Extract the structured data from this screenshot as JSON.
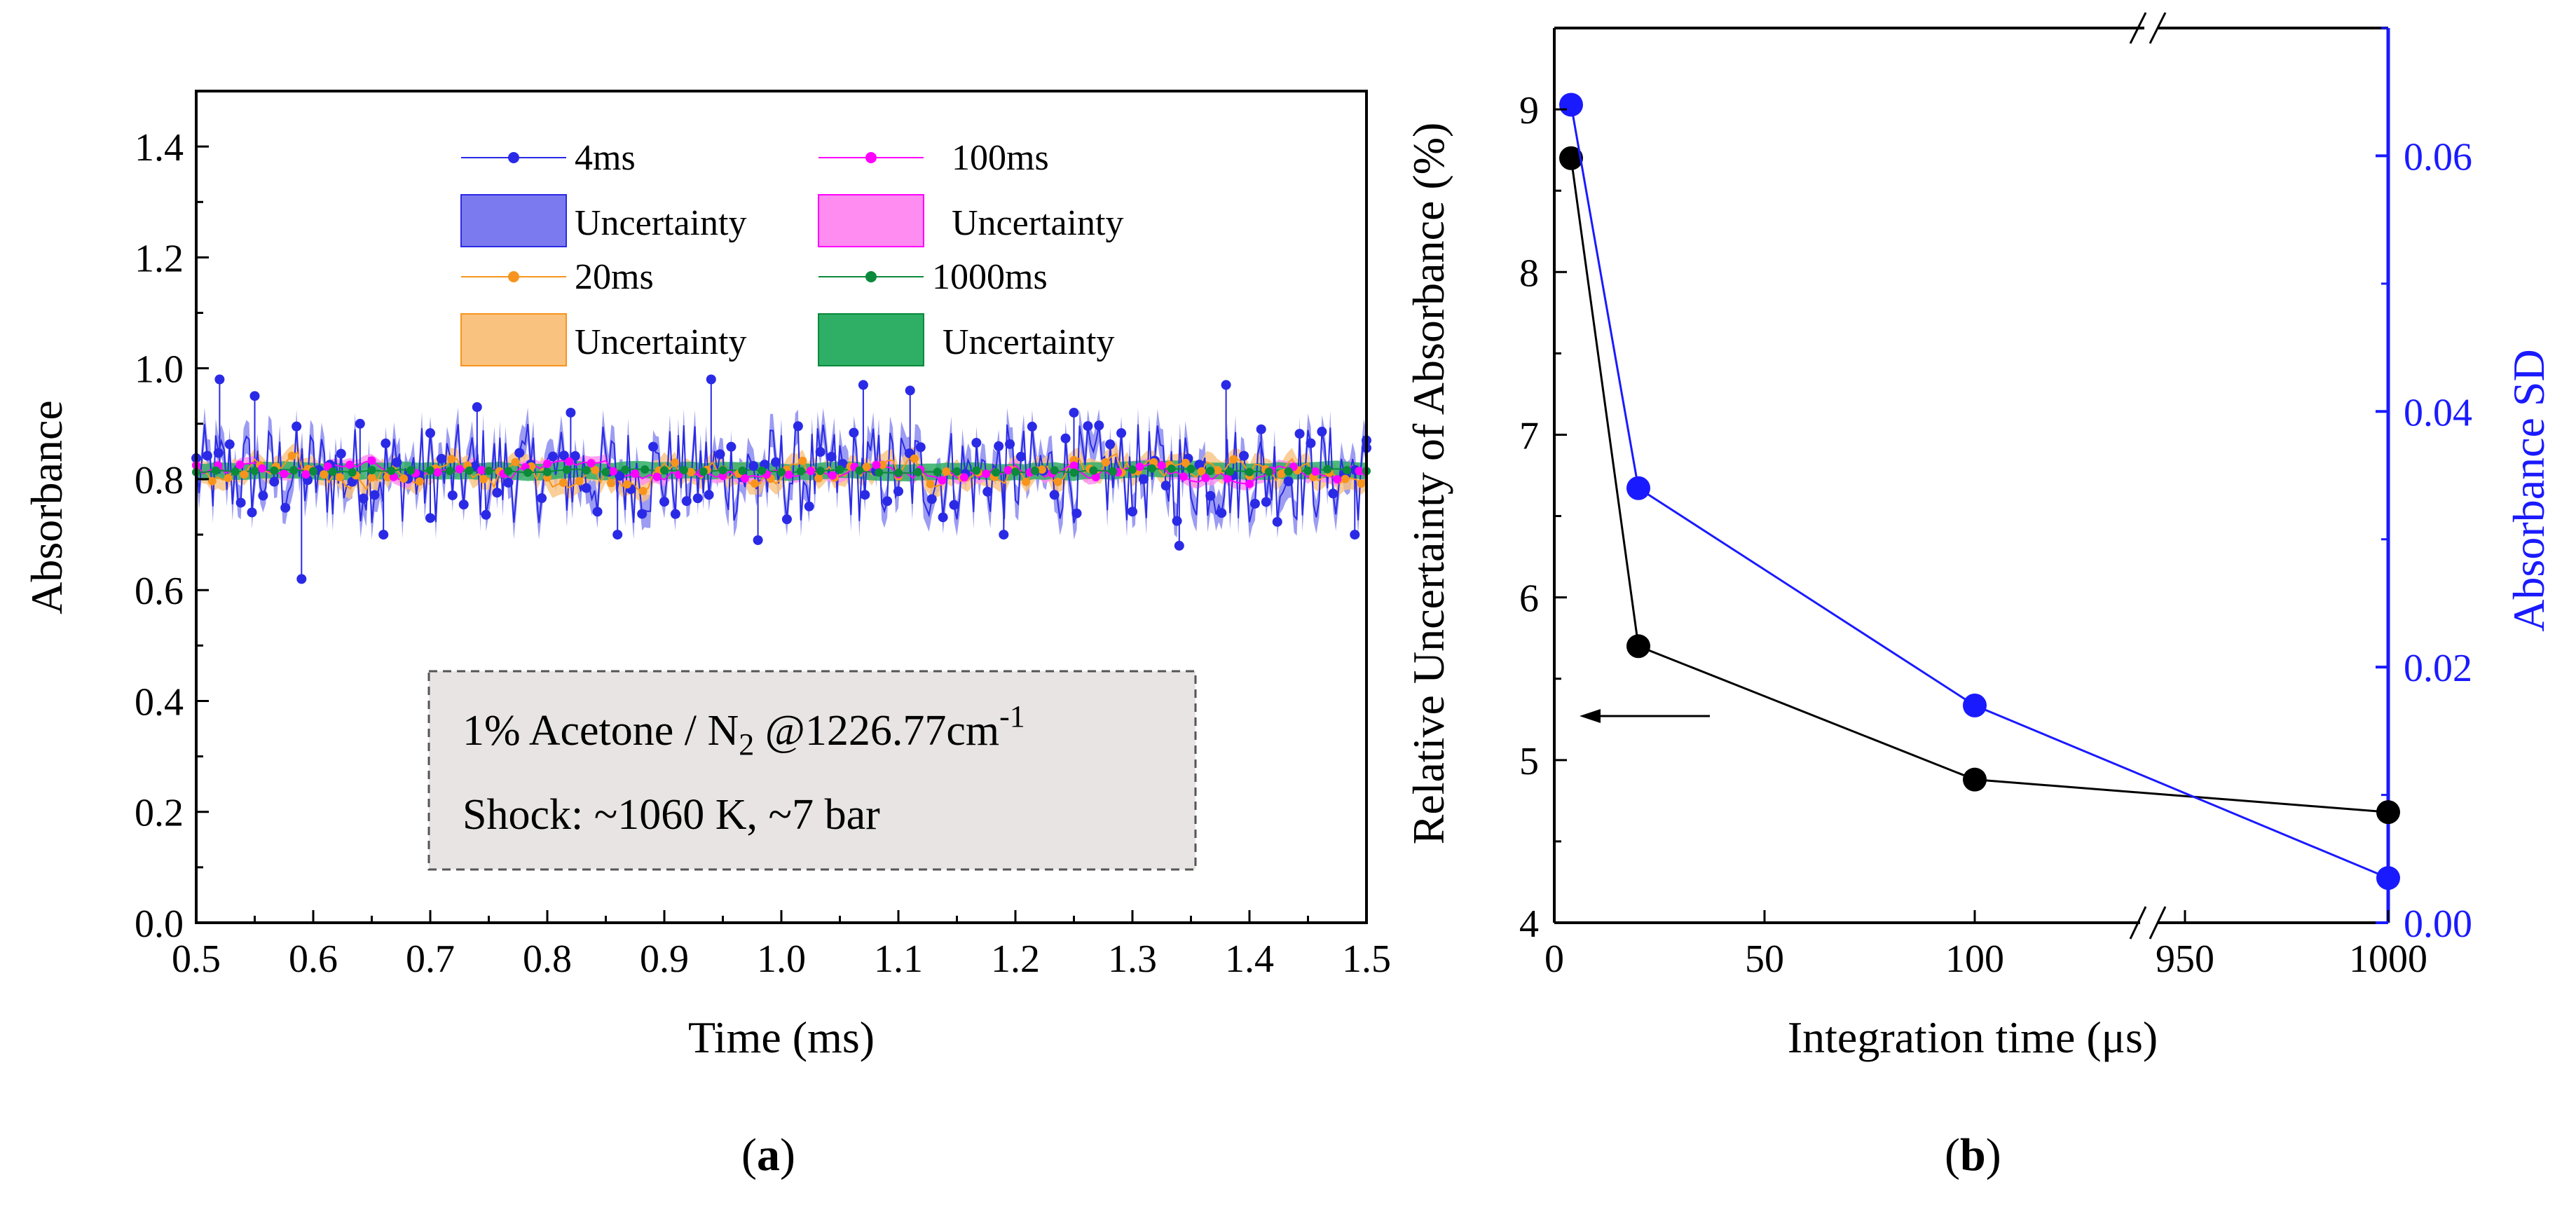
{
  "figure": {
    "panel_a_label": "a",
    "panel_b_label": "b"
  },
  "colors": {
    "series_4ms": "#2a2ae6",
    "band_4ms": "#7b7bef",
    "series_20ms": "#f7941d",
    "band_20ms": "#f9c27f",
    "series_100ms": "#ff00ff",
    "band_100ms": "#ff8cf0",
    "series_1000ms": "#0a8a3a",
    "band_1000ms": "#2fae66",
    "right_axis": "#1a1aff",
    "black": "#000000"
  },
  "chart_data": [
    {
      "id": "a",
      "type": "line",
      "xlabel": "Time (ms)",
      "ylabel": "Absorbance",
      "xlim": [
        0.5,
        1.5
      ],
      "ylim": [
        0.0,
        1.5
      ],
      "xticks": [
        0.5,
        0.6,
        0.7,
        0.8,
        0.9,
        1.0,
        1.1,
        1.2,
        1.3,
        1.4,
        1.5
      ],
      "xtick_labels": [
        "0.5",
        "0.6",
        "0.7",
        "0.8",
        "0.9",
        "1.0",
        "1.1",
        "1.2",
        "1.3",
        "1.4",
        "1.5"
      ],
      "yticks": [
        0.0,
        0.2,
        0.4,
        0.6,
        0.8,
        1.0,
        1.2,
        1.4
      ],
      "ytick_labels": [
        "0.0",
        "0.2",
        "0.4",
        "0.6",
        "0.8",
        "1.0",
        "1.2",
        "1.4"
      ],
      "legend": [
        {
          "label": "4ms",
          "kind": "line"
        },
        {
          "label": "100ms",
          "kind": "line"
        },
        {
          "label": "Uncertainty",
          "kind": "band"
        },
        {
          "label": "Uncertainty",
          "kind": "band"
        },
        {
          "label": "20ms",
          "kind": "line"
        },
        {
          "label": "1000ms",
          "kind": "line"
        },
        {
          "label": "Uncertainty",
          "kind": "band"
        },
        {
          "label": "Uncertainty",
          "kind": "band"
        }
      ],
      "annotation": {
        "line1_main": "1% Acetone / N",
        "line1_sub": "2",
        "line1_tail": " @1226.77cm",
        "line1_sup": "-1",
        "line2": "Shock: ~1060 K, ~7 bar"
      },
      "series": [
        {
          "name": "4ms",
          "mean": 0.81,
          "noise_amplitude": 0.09,
          "uncertainty": 0.03,
          "marker_points": [
            [
              0.52,
              0.98
            ],
            [
              0.55,
              0.95
            ],
            [
              0.59,
              0.62
            ],
            [
              0.64,
              0.9
            ],
            [
              0.74,
              0.93
            ],
            [
              0.82,
              0.92
            ],
            [
              0.94,
              0.98
            ],
            [
              1.07,
              0.97
            ],
            [
              1.11,
              0.96
            ],
            [
              1.25,
              0.92
            ],
            [
              1.38,
              0.97
            ],
            [
              1.41,
              0.89
            ],
            [
              1.49,
              0.7
            ],
            [
              1.5,
              0.87
            ],
            [
              0.66,
              0.7
            ],
            [
              0.86,
              0.7
            ],
            [
              0.98,
              0.69
            ],
            [
              1.19,
              0.7
            ],
            [
              1.34,
              0.68
            ],
            [
              0.7,
              0.73
            ]
          ]
        },
        {
          "name": "20ms",
          "mean": 0.81,
          "noise_amplitude": 0.05,
          "uncertainty": 0.02
        },
        {
          "name": "100ms",
          "mean": 0.815,
          "noise_amplitude": 0.03,
          "uncertainty": 0.012
        },
        {
          "name": "1000ms",
          "mean": 0.815,
          "noise_amplitude": 0.006,
          "uncertainty": 0.015
        }
      ]
    },
    {
      "id": "b",
      "type": "line",
      "xlabel": "Integration time (μs)",
      "ylabel_left": "Relative Uncertainty of Absorbance (%)",
      "ylabel_right": "Absorbance SD",
      "xtick_labels": [
        "0",
        "50",
        "100",
        "950",
        "1000"
      ],
      "x_break": true,
      "ylim_left": [
        4,
        9.5
      ],
      "yticks_left": [
        4,
        5,
        6,
        7,
        8,
        9
      ],
      "ylim_right": [
        0.0,
        0.07
      ],
      "yticks_right": [
        0.0,
        0.02,
        0.04,
        0.06
      ],
      "ytick_labels_right": [
        "0.00",
        "0.02",
        "0.04",
        "0.06"
      ],
      "series": [
        {
          "name": "Relative Uncertainty",
          "axis": "left",
          "x": [
            4,
            20,
            100,
            1000
          ],
          "values": [
            8.7,
            5.7,
            4.88,
            4.68
          ]
        },
        {
          "name": "Absorbance SD",
          "axis": "right",
          "x": [
            4,
            20,
            100,
            1000
          ],
          "values": [
            0.064,
            0.034,
            0.017,
            0.0035
          ]
        }
      ],
      "arrow": "points left to Relative Uncertainty axis"
    }
  ]
}
